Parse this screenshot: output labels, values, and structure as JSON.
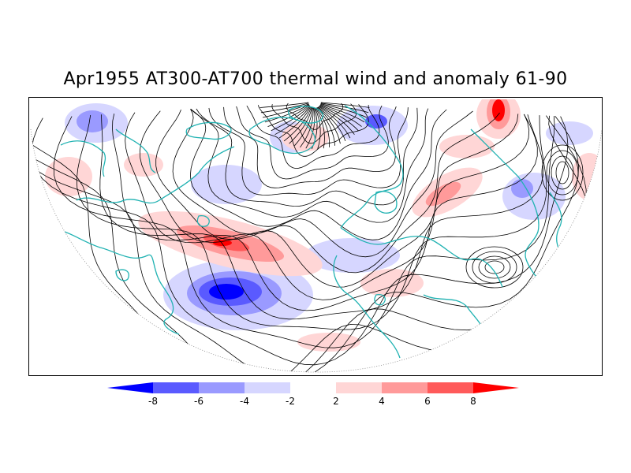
{
  "title": "Apr1955 AT300-AT700 thermal wind and anomaly 61-90",
  "colorbar": {
    "ticks": [
      "-8",
      "-6",
      "-4",
      "-2",
      "2",
      "4",
      "6",
      "8"
    ],
    "colors": [
      "#0000ff",
      "#5a5aff",
      "#9a9aff",
      "#d6d6ff",
      "#ffffff",
      "#ffd6d6",
      "#ff9a9a",
      "#ff5a5a",
      "#ff0000"
    ]
  },
  "map": {
    "projection": "north-polar",
    "coastline_color": "#20b2b2",
    "streamline_color": "#000000"
  }
}
